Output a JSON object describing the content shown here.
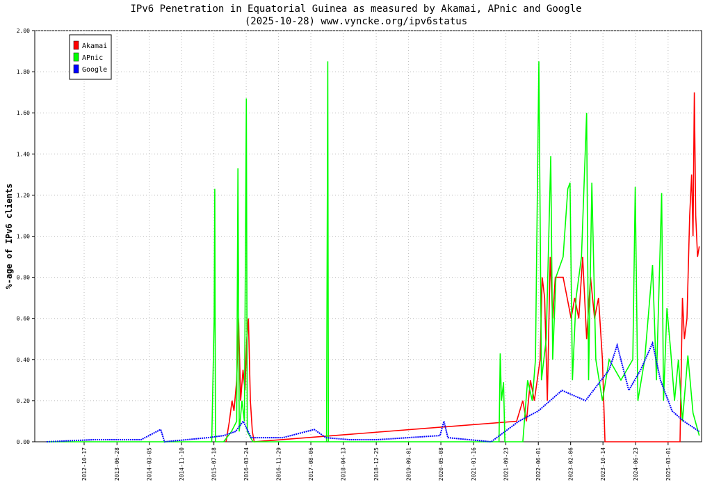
{
  "chart_data": {
    "type": "line",
    "title": "IPv6 Penetration in Equatorial Guinea as measured by Akamai, APnic and Google",
    "subtitle": "(2025-10-28) www.vyncke.org/ipv6status",
    "ylabel": "%-age of IPv6 clients",
    "xlabel": "",
    "ylim": [
      0,
      2.0
    ],
    "xlim": [
      "2011-10-01",
      "2025-11-15"
    ],
    "y_ticks": [
      "0.00",
      "0.20",
      "0.40",
      "0.60",
      "0.80",
      "1.00",
      "1.20",
      "1.40",
      "1.60",
      "1.80",
      "2.00"
    ],
    "x_ticks": [
      "2012-10-17",
      "2013-06-28",
      "2014-03-05",
      "2014-11-10",
      "2015-07-18",
      "2016-03-24",
      "2016-11-29",
      "2017-08-06",
      "2018-04-13",
      "2018-12-25",
      "2019-09-01",
      "2020-05-08",
      "2021-01-16",
      "2021-09-23",
      "2022-06-01",
      "2023-02-06",
      "2023-10-14",
      "2024-06-23",
      "2025-03-01"
    ],
    "grid": true,
    "legend_position": "top-left",
    "series": [
      {
        "name": "Akamai",
        "color": "#ff0000",
        "points": [
          [
            "2015-10-20",
            0.0
          ],
          [
            "2015-11-15",
            0.1
          ],
          [
            "2015-12-05",
            0.2
          ],
          [
            "2015-12-20",
            0.15
          ],
          [
            "2016-01-10",
            0.3
          ],
          [
            "2016-01-25",
            0.6
          ],
          [
            "2016-02-10",
            0.2
          ],
          [
            "2016-02-28",
            0.35
          ],
          [
            "2016-03-15",
            0.25
          ],
          [
            "2016-03-28",
            0.5
          ],
          [
            "2016-04-10",
            0.6
          ],
          [
            "2016-04-25",
            0.2
          ],
          [
            "2016-05-10",
            0.05
          ],
          [
            "2016-05-25",
            0.0
          ],
          [
            "2021-12-15",
            0.1
          ],
          [
            "2022-02-01",
            0.2
          ],
          [
            "2022-03-01",
            0.1
          ],
          [
            "2022-04-01",
            0.3
          ],
          [
            "2022-05-01",
            0.2
          ],
          [
            "2022-06-15",
            0.4
          ],
          [
            "2022-07-01",
            0.8
          ],
          [
            "2022-07-20",
            0.7
          ],
          [
            "2022-08-10",
            0.2
          ],
          [
            "2022-09-01",
            0.9
          ],
          [
            "2022-09-20",
            0.6
          ],
          [
            "2022-10-10",
            0.8
          ],
          [
            "2022-11-10",
            0.8
          ],
          [
            "2022-12-10",
            0.8
          ],
          [
            "2023-01-10",
            0.7
          ],
          [
            "2023-02-10",
            0.6
          ],
          [
            "2023-03-10",
            0.7
          ],
          [
            "2023-04-10",
            0.6
          ],
          [
            "2023-05-10",
            0.9
          ],
          [
            "2023-06-10",
            0.5
          ],
          [
            "2023-07-10",
            0.8
          ],
          [
            "2023-08-10",
            0.6
          ],
          [
            "2023-09-10",
            0.7
          ],
          [
            "2023-10-10",
            0.4
          ],
          [
            "2023-10-30",
            0.0
          ],
          [
            "2025-06-01",
            0.0
          ],
          [
            "2025-06-20",
            0.7
          ],
          [
            "2025-07-05",
            0.5
          ],
          [
            "2025-07-25",
            0.6
          ],
          [
            "2025-08-15",
            1.1
          ],
          [
            "2025-08-30",
            1.3
          ],
          [
            "2025-09-10",
            1.0
          ],
          [
            "2025-09-20",
            1.7
          ],
          [
            "2025-10-01",
            1.1
          ],
          [
            "2025-10-15",
            0.9
          ],
          [
            "2025-10-28",
            0.95
          ]
        ]
      },
      {
        "name": "APnic",
        "color": "#00ff00",
        "points": [
          [
            "2012-01-01",
            0.0
          ],
          [
            "2015-07-01",
            0.0
          ],
          [
            "2015-07-20",
            0.6
          ],
          [
            "2015-07-25",
            1.23
          ],
          [
            "2015-07-30",
            0.0
          ],
          [
            "2015-10-01",
            0.0
          ],
          [
            "2015-12-01",
            0.05
          ],
          [
            "2016-01-10",
            0.1
          ],
          [
            "2016-01-20",
            1.33
          ],
          [
            "2016-01-30",
            0.05
          ],
          [
            "2016-02-20",
            0.2
          ],
          [
            "2016-03-10",
            0.1
          ],
          [
            "2016-03-25",
            1.67
          ],
          [
            "2016-04-01",
            0.05
          ],
          [
            "2016-05-15",
            0.0
          ],
          [
            "2017-12-05",
            0.0
          ],
          [
            "2017-12-10",
            0.92
          ],
          [
            "2017-12-15",
            1.85
          ],
          [
            "2017-12-20",
            0.0
          ],
          [
            "2021-08-01",
            0.0
          ],
          [
            "2021-08-10",
            0.43
          ],
          [
            "2021-08-20",
            0.2
          ],
          [
            "2021-09-05",
            0.29
          ],
          [
            "2021-09-15",
            0.0
          ],
          [
            "2022-02-01",
            0.0
          ],
          [
            "2022-03-10",
            0.3
          ],
          [
            "2022-04-15",
            0.2
          ],
          [
            "2022-05-10",
            0.4
          ],
          [
            "2022-06-05",
            1.85
          ],
          [
            "2022-06-25",
            0.3
          ],
          [
            "2022-08-01",
            0.5
          ],
          [
            "2022-09-05",
            1.39
          ],
          [
            "2022-09-20",
            0.4
          ],
          [
            "2022-10-15",
            0.8
          ],
          [
            "2022-12-10",
            0.9
          ],
          [
            "2023-01-15",
            1.23
          ],
          [
            "2023-02-01",
            1.26
          ],
          [
            "2023-02-20",
            0.3
          ],
          [
            "2023-03-20",
            0.7
          ],
          [
            "2023-05-01",
            0.9
          ],
          [
            "2023-06-10",
            1.6
          ],
          [
            "2023-06-25",
            0.3
          ],
          [
            "2023-07-20",
            1.26
          ],
          [
            "2023-08-20",
            0.4
          ],
          [
            "2023-10-10",
            0.2
          ],
          [
            "2023-12-01",
            0.4
          ],
          [
            "2024-03-01",
            0.3
          ],
          [
            "2024-06-01",
            0.4
          ],
          [
            "2024-06-20",
            1.24
          ],
          [
            "2024-07-10",
            0.2
          ],
          [
            "2024-09-01",
            0.4
          ],
          [
            "2024-11-01",
            0.86
          ],
          [
            "2024-12-01",
            0.3
          ],
          [
            "2025-01-10",
            1.21
          ],
          [
            "2025-01-25",
            0.2
          ],
          [
            "2025-02-20",
            0.65
          ],
          [
            "2025-03-20",
            0.45
          ],
          [
            "2025-04-20",
            0.2
          ],
          [
            "2025-05-20",
            0.4
          ],
          [
            "2025-06-20",
            0.1
          ],
          [
            "2025-08-01",
            0.42
          ],
          [
            "2025-09-10",
            0.14
          ],
          [
            "2025-10-28",
            0.03
          ]
        ]
      },
      {
        "name": "Google",
        "color": "#0000ff",
        "points": [
          [
            "2012-01-01",
            0.0
          ],
          [
            "2013-01-01",
            0.01
          ],
          [
            "2014-01-01",
            0.01
          ],
          [
            "2014-06-01",
            0.06
          ],
          [
            "2014-07-01",
            0.0
          ],
          [
            "2015-06-01",
            0.02
          ],
          [
            "2015-10-01",
            0.03
          ],
          [
            "2016-01-01",
            0.05
          ],
          [
            "2016-03-01",
            0.1
          ],
          [
            "2016-05-01",
            0.02
          ],
          [
            "2017-01-01",
            0.02
          ],
          [
            "2017-09-01",
            0.06
          ],
          [
            "2017-12-01",
            0.02
          ],
          [
            "2018-06-01",
            0.01
          ],
          [
            "2019-01-01",
            0.01
          ],
          [
            "2020-05-01",
            0.03
          ],
          [
            "2020-06-01",
            0.1
          ],
          [
            "2020-07-01",
            0.02
          ],
          [
            "2021-06-01",
            0.0
          ],
          [
            "2022-01-01",
            0.1
          ],
          [
            "2022-06-01",
            0.15
          ],
          [
            "2022-12-01",
            0.25
          ],
          [
            "2023-06-01",
            0.2
          ],
          [
            "2023-12-01",
            0.35
          ],
          [
            "2024-02-01",
            0.47
          ],
          [
            "2024-05-01",
            0.25
          ],
          [
            "2024-08-01",
            0.35
          ],
          [
            "2024-11-01",
            0.48
          ],
          [
            "2025-01-01",
            0.3
          ],
          [
            "2025-04-01",
            0.15
          ],
          [
            "2025-07-01",
            0.1
          ],
          [
            "2025-10-28",
            0.05
          ]
        ]
      }
    ]
  }
}
